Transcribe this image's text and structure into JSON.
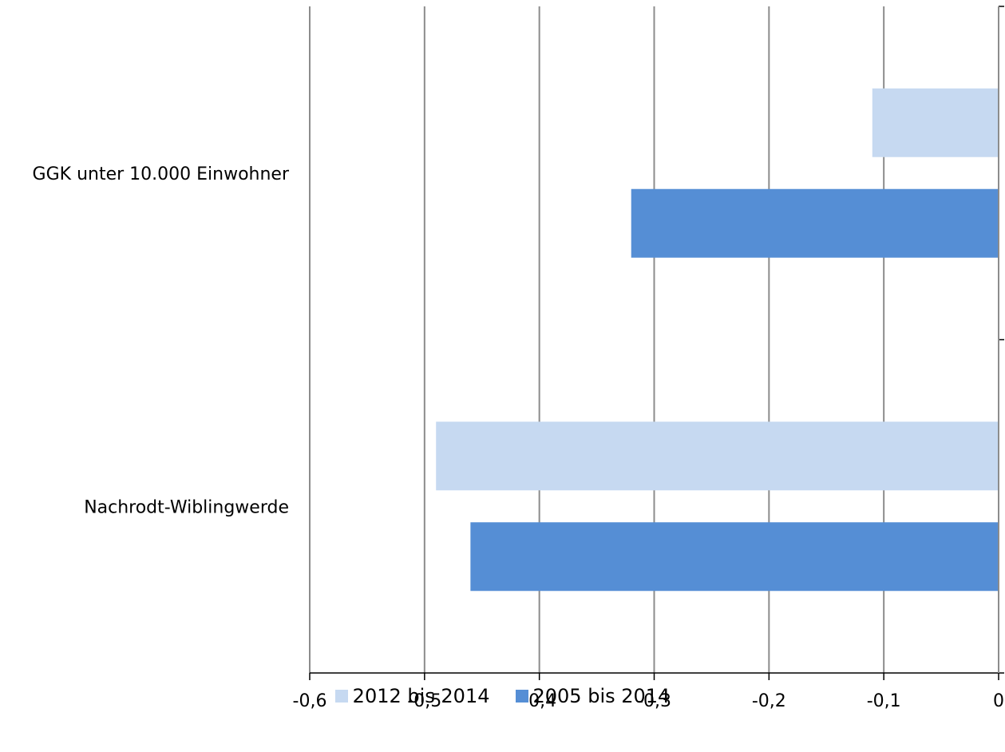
{
  "chart_data": {
    "type": "bar",
    "orientation": "horizontal",
    "categories": [
      "GGK unter 10.000 Einwohner",
      "Nachrodt-Wiblingwerde"
    ],
    "series": [
      {
        "name": "2012 bis 2014",
        "color": "#c6d9f1",
        "values": [
          -0.11,
          -0.49
        ]
      },
      {
        "name": "2005 bis 2014",
        "color": "#558ed5",
        "values": [
          -0.32,
          -0.46
        ]
      }
    ],
    "xlim": [
      -0.6,
      0
    ],
    "xticks": [
      "-0,6",
      "-0,5",
      "-0,4",
      "-0,3",
      "-0,2",
      "-0,1",
      "0"
    ],
    "grid": true,
    "legend": "bottom"
  }
}
